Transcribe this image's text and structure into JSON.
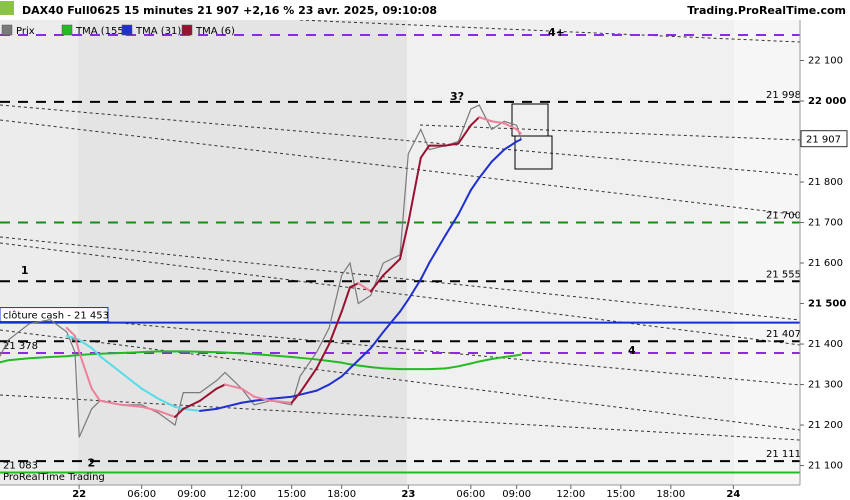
{
  "chart_data": {
    "type": "line",
    "title": "DAX40 Full0625 15 minutes 21 907 +2,16 % 23 avr. 2025, 09:10:08",
    "source": "Trading.ProRealTime.com",
    "footer": "ProRealTime Trading",
    "xlim": [
      0,
      192
    ],
    "xticks": [
      {
        "value": 19,
        "label": "22"
      },
      {
        "value": 34,
        "label": "06:00"
      },
      {
        "value": 46,
        "label": "09:00"
      },
      {
        "value": 58,
        "label": "12:00"
      },
      {
        "value": 70,
        "label": "15:00"
      },
      {
        "value": 82,
        "label": "18:00"
      },
      {
        "value": 98,
        "label": "23"
      },
      {
        "value": 113,
        "label": "06:00"
      },
      {
        "value": 124,
        "label": "09:00"
      },
      {
        "value": 137,
        "label": "12:00"
      },
      {
        "value": 149,
        "label": "15:00"
      },
      {
        "value": 161,
        "label": "18:00"
      },
      {
        "value": 176,
        "label": "24"
      }
    ],
    "ylim": [
      21052,
      22200
    ],
    "yticks": [
      {
        "value": 22100,
        "label": "22 100"
      },
      {
        "value": 22000,
        "label": "22 000"
      },
      {
        "value": 21900,
        "label": "21 900"
      },
      {
        "value": 21800,
        "label": "21 800"
      },
      {
        "value": 21700,
        "label": "21 700"
      },
      {
        "value": 21600,
        "label": "21 600"
      },
      {
        "value": 21500,
        "label": "21 500"
      },
      {
        "value": 21400,
        "label": "21 400"
      },
      {
        "value": 21300,
        "label": "21 300"
      },
      {
        "value": 21200,
        "label": "21 200"
      },
      {
        "value": 21100,
        "label": "21 100"
      }
    ],
    "x": [
      0,
      2,
      7,
      12,
      16,
      18,
      19,
      22,
      24,
      29,
      34,
      38,
      42,
      44,
      48,
      52,
      54,
      58,
      61,
      65,
      70,
      72,
      76,
      79,
      82,
      84,
      86,
      89,
      92,
      96,
      98,
      101,
      103,
      107,
      110,
      113,
      115,
      118,
      121,
      124,
      125
    ],
    "series": [
      {
        "name": "Prix",
        "color": "#7a7a7a",
        "values": [
          21370,
          21410,
          21450,
          21460,
          21430,
          21380,
          21170,
          21240,
          21260,
          21250,
          21250,
          21230,
          21200,
          21280,
          21280,
          21310,
          21330,
          21290,
          21250,
          21260,
          21250,
          21320,
          21380,
          21440,
          21570,
          21600,
          21500,
          21520,
          21600,
          21620,
          21870,
          21930,
          21880,
          21890,
          21900,
          21980,
          21990,
          21930,
          21950,
          21940,
          21907
        ]
      },
      {
        "name": "TMA (155)",
        "color": "#22bb22",
        "values": [
          21355,
          21360,
          21365,
          21368,
          21370,
          21372,
          21373,
          21375,
          21376,
          21378,
          21380,
          21382,
          21382,
          21382,
          21381,
          21380,
          21379,
          21377,
          21375,
          21372,
          21368,
          21366,
          21362,
          21358,
          21354,
          21350,
          21347,
          21343,
          21340,
          21338,
          21338,
          21338,
          21338,
          21340,
          21345,
          21352,
          21357,
          21363,
          21368,
          21372,
          21374
        ]
      },
      {
        "name": "TMA (31)",
        "color": "#1f2fd0",
        "down_color": "#55dde8",
        "values": [
          null,
          null,
          null,
          null,
          21420,
          21415,
          21410,
          21390,
          21370,
          21330,
          21290,
          21265,
          21245,
          21240,
          21235,
          21240,
          21245,
          21255,
          21260,
          21265,
          21270,
          21275,
          21285,
          21300,
          21320,
          21340,
          21360,
          21390,
          21430,
          21480,
          21510,
          21560,
          21600,
          21670,
          21720,
          21780,
          21810,
          21850,
          21880,
          21900,
          21905
        ]
      },
      {
        "name": "TMA (6)",
        "color": "#9a1030",
        "down_color": "#f07f9a",
        "values": [
          null,
          null,
          null,
          null,
          21440,
          21420,
          21380,
          21290,
          21260,
          21250,
          21245,
          21235,
          21220,
          21240,
          21260,
          21290,
          21300,
          21290,
          21270,
          21260,
          21255,
          21280,
          21340,
          21400,
          21480,
          21540,
          21550,
          21530,
          21570,
          21610,
          21700,
          21860,
          21890,
          21890,
          21895,
          21940,
          21960,
          21950,
          21945,
          21930,
          21920
        ]
      }
    ],
    "levels": [
      {
        "value": 22163,
        "tag": "4+",
        "color": "#8a2be2",
        "width": 2,
        "dash": "10 8"
      },
      {
        "value": 21998,
        "label": "21 998",
        "color": "#000000",
        "width": 2,
        "dash": "10 8",
        "side": "right"
      },
      {
        "value": 21700,
        "label": "21 700",
        "color": "#1a8a1a",
        "width": 2,
        "dash": "10 8",
        "side": "right"
      },
      {
        "value": 21555,
        "label": "21 555",
        "color": "#000000",
        "width": 2,
        "dash": "10 8",
        "side": "right"
      },
      {
        "value": 21453,
        "label": "clôture cash -  21 453",
        "color": "#1030d0",
        "width": 2,
        "dash": "none",
        "side": "left"
      },
      {
        "value": 21407,
        "label": "21 407",
        "color": "#000000",
        "width": 2,
        "dash": "10 8",
        "side": "right"
      },
      {
        "value": 21378,
        "label": "21 378",
        "tag": "4",
        "color": "#8a2be2",
        "width": 2,
        "dash": "10 8",
        "side": "left"
      },
      {
        "value": 21111,
        "label": "21 111",
        "color": "#000000",
        "width": 2,
        "dash": "10 8",
        "side": "right"
      },
      {
        "value": 21083,
        "label": "21 083",
        "color": "#22bb22",
        "width": 2,
        "dash": "none",
        "side": "left"
      }
    ],
    "current": {
      "value": 21907,
      "label": "21 907"
    },
    "annotations": [
      {
        "text": "1",
        "x": 5,
        "y": 21580
      },
      {
        "text": "2",
        "x": 21,
        "y": 21105
      },
      {
        "text": "3?",
        "x": 108,
        "y": 22010
      }
    ]
  }
}
